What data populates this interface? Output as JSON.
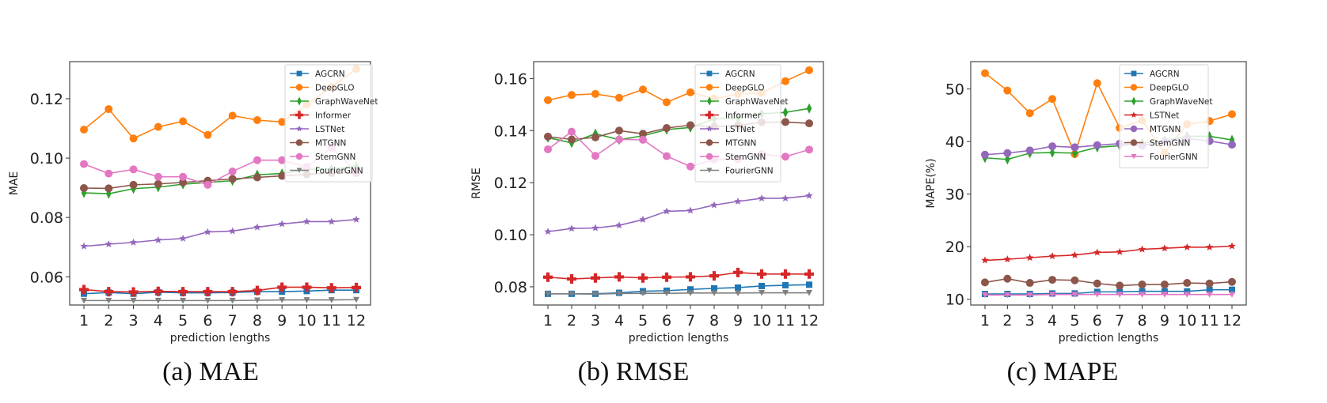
{
  "chart_data": [
    {
      "id": "mae",
      "type": "line",
      "caption": "(a) MAE",
      "xlabel": "prediction lengths",
      "ylabel": "MAE",
      "x": [
        1,
        2,
        3,
        4,
        5,
        6,
        7,
        8,
        9,
        10,
        11,
        12
      ],
      "ylim": [
        0.0505,
        0.1325
      ],
      "yticks": [
        0.06,
        0.08,
        0.1,
        0.12
      ],
      "ytick_labels": [
        "0.06",
        "0.08",
        "0.10",
        "0.12"
      ],
      "legend_position": "top-right",
      "grid": false,
      "series": [
        {
          "name": "AGCRN",
          "color": "#1f77b4",
          "marker": "square",
          "values": [
            0.0543,
            0.0547,
            0.0543,
            0.0548,
            0.0546,
            0.0546,
            0.0547,
            0.055,
            0.055,
            0.0552,
            0.0555,
            0.0555
          ]
        },
        {
          "name": "DeepGLO",
          "color": "#ff7f0e",
          "marker": "circle",
          "values": [
            0.1096,
            0.1165,
            0.1066,
            0.1105,
            0.1124,
            0.1078,
            0.1143,
            0.1128,
            0.1122,
            0.118,
            0.124,
            0.13
          ]
        },
        {
          "name": "GraphWaveNet",
          "color": "#2ca02c",
          "marker": "thin-diamond",
          "values": [
            0.0883,
            0.088,
            0.0897,
            0.0902,
            0.0912,
            0.0918,
            0.0924,
            0.0944,
            0.0948,
            0.0962,
            0.0963,
            0.0972
          ]
        },
        {
          "name": "Informer",
          "color": "#d62728",
          "marker": "plus-filled",
          "values": [
            0.0557,
            0.055,
            0.0549,
            0.0551,
            0.055,
            0.055,
            0.055,
            0.0554,
            0.0565,
            0.0565,
            0.0563,
            0.0564
          ]
        },
        {
          "name": "LSTNet",
          "color": "#9467bd",
          "marker": "star",
          "values": [
            0.0703,
            0.071,
            0.0716,
            0.0724,
            0.0729,
            0.0751,
            0.0754,
            0.0767,
            0.0778,
            0.0786,
            0.0786,
            0.0793
          ]
        },
        {
          "name": "MTGNN",
          "color": "#8c564b",
          "marker": "circle",
          "values": [
            0.0899,
            0.0898,
            0.091,
            0.0913,
            0.0918,
            0.0924,
            0.093,
            0.0935,
            0.094,
            0.0945,
            0.095,
            0.095
          ]
        },
        {
          "name": "StemGNN",
          "color": "#e377c2",
          "marker": "circle",
          "values": [
            0.098,
            0.0948,
            0.0962,
            0.0937,
            0.0937,
            0.091,
            0.0955,
            0.0993,
            0.0993,
            0.097,
            0.1035,
            0.0955
          ]
        },
        {
          "name": "FourierGNN",
          "color": "#7f7f7f",
          "marker": "triangle-down",
          "values": [
            0.052,
            0.052,
            0.052,
            0.052,
            0.052,
            0.052,
            0.052,
            0.0521,
            0.0522,
            0.0522,
            0.0522,
            0.0523
          ]
        }
      ]
    },
    {
      "id": "rmse",
      "type": "line",
      "caption": "(b) RMSE",
      "xlabel": "prediction lengths",
      "ylabel": "RMSE",
      "x": [
        1,
        2,
        3,
        4,
        5,
        6,
        7,
        8,
        9,
        10,
        11,
        12
      ],
      "ylim": [
        0.073,
        0.1665
      ],
      "yticks": [
        0.08,
        0.1,
        0.12,
        0.14,
        0.16
      ],
      "ytick_labels": [
        "0.08",
        "0.10",
        "0.12",
        "0.14",
        "0.16"
      ],
      "legend_position": "top-right",
      "grid": false,
      "series": [
        {
          "name": "AGCRN",
          "color": "#1f77b4",
          "marker": "square",
          "values": [
            0.0773,
            0.0773,
            0.0773,
            0.0777,
            0.0783,
            0.0785,
            0.079,
            0.0794,
            0.0797,
            0.0803,
            0.0806,
            0.0808
          ]
        },
        {
          "name": "DeepGLO",
          "color": "#ff7f0e",
          "marker": "circle",
          "values": [
            0.1517,
            0.1537,
            0.1541,
            0.1526,
            0.1558,
            0.1509,
            0.1547,
            0.1523,
            0.154,
            0.1545,
            0.159,
            0.1632
          ]
        },
        {
          "name": "GraphWaveNet",
          "color": "#2ca02c",
          "marker": "thin-diamond",
          "values": [
            0.1373,
            0.1353,
            0.1388,
            0.1365,
            0.138,
            0.1404,
            0.1412,
            0.1445,
            0.1448,
            0.1465,
            0.147,
            0.1485
          ]
        },
        {
          "name": "Informer",
          "color": "#d62728",
          "marker": "plus-filled",
          "values": [
            0.0837,
            0.083,
            0.0834,
            0.0838,
            0.0834,
            0.0837,
            0.0838,
            0.0842,
            0.0855,
            0.0849,
            0.0849,
            0.0849
          ]
        },
        {
          "name": "LSTNet",
          "color": "#9467bd",
          "marker": "star",
          "values": [
            0.1012,
            0.1024,
            0.1026,
            0.1036,
            0.1058,
            0.109,
            0.1093,
            0.1114,
            0.1128,
            0.114,
            0.114,
            0.115
          ]
        },
        {
          "name": "MTGNN",
          "color": "#8c564b",
          "marker": "circle",
          "values": [
            0.1377,
            0.1366,
            0.1374,
            0.14,
            0.1388,
            0.141,
            0.1421,
            0.1415,
            0.142,
            0.1432,
            0.1433,
            0.1428
          ]
        },
        {
          "name": "StemGNN",
          "color": "#e377c2",
          "marker": "circle",
          "values": [
            0.1328,
            0.1396,
            0.1303,
            0.1366,
            0.1365,
            0.1302,
            0.1262,
            0.1289,
            0.129,
            0.131,
            0.13,
            0.1327
          ]
        },
        {
          "name": "FourierGNN",
          "color": "#7f7f7f",
          "marker": "triangle-down",
          "values": [
            0.0773,
            0.0773,
            0.0772,
            0.0774,
            0.0775,
            0.0775,
            0.0776,
            0.0776,
            0.0776,
            0.0777,
            0.0777,
            0.0777
          ]
        }
      ]
    },
    {
      "id": "mape",
      "type": "line",
      "caption": "(c) MAPE",
      "xlabel": "prediction lengths",
      "ylabel": "MAPE(%)",
      "x": [
        1,
        2,
        3,
        4,
        5,
        6,
        7,
        8,
        9,
        10,
        11,
        12
      ],
      "ylim": [
        8.9,
        55.2
      ],
      "yticks": [
        10,
        20,
        30,
        40,
        50
      ],
      "ytick_labels": [
        "10",
        "20",
        "30",
        "40",
        "50"
      ],
      "legend_position": "top-right",
      "grid": false,
      "series": [
        {
          "name": "AGCRN",
          "color": "#1f77b4",
          "marker": "square",
          "values": [
            11.0,
            11.0,
            11.0,
            11.1,
            11.1,
            11.4,
            11.4,
            11.5,
            11.5,
            11.5,
            11.8,
            11.8
          ]
        },
        {
          "name": "DeepGLO",
          "color": "#ff7f0e",
          "marker": "circle",
          "values": [
            53.0,
            49.7,
            45.4,
            48.1,
            37.6,
            51.1,
            42.6,
            44.0,
            37.9,
            43.3,
            43.9,
            45.2
          ]
        },
        {
          "name": "GraphWaveNet",
          "color": "#2ca02c",
          "marker": "thin-diamond",
          "values": [
            36.9,
            36.6,
            37.8,
            37.9,
            37.8,
            38.9,
            39.2,
            39.7,
            40.2,
            41.0,
            41.0,
            40.3
          ]
        },
        {
          "name": "LSTNet",
          "color": "#d62728",
          "marker": "star",
          "values": [
            17.4,
            17.6,
            17.9,
            18.2,
            18.4,
            18.9,
            19.0,
            19.5,
            19.7,
            19.9,
            19.9,
            20.1
          ]
        },
        {
          "name": "MTGNN",
          "color": "#9467bd",
          "marker": "circle",
          "values": [
            37.5,
            37.8,
            38.3,
            39.1,
            38.9,
            39.3,
            39.6,
            39.2,
            40.1,
            40.6,
            40.1,
            39.4
          ]
        },
        {
          "name": "StemGNN",
          "color": "#8c564b",
          "marker": "circle",
          "values": [
            13.2,
            13.9,
            13.1,
            13.7,
            13.6,
            13.0,
            12.6,
            12.8,
            12.8,
            13.1,
            13.0,
            13.3
          ]
        },
        {
          "name": "FourierGNN",
          "color": "#e377c2",
          "marker": "triangle-down",
          "values": [
            10.8,
            10.8,
            10.8,
            10.9,
            10.9,
            10.9,
            10.9,
            10.9,
            10.9,
            10.9,
            10.9,
            10.9
          ]
        }
      ]
    }
  ]
}
